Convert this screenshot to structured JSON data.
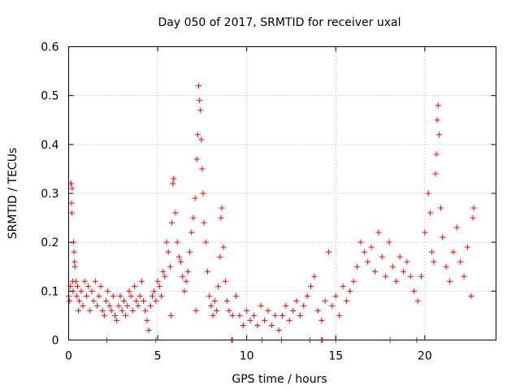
{
  "chart_data": {
    "type": "scatter",
    "title": "Day 050 of 2017, SRMTID for receiver uxal",
    "xlabel": "GPS time / hours",
    "ylabel": "SRMTID / TECUs",
    "xlim": [
      0,
      24
    ],
    "ylim": [
      0,
      0.6
    ],
    "xticks": [
      0,
      5,
      10,
      15,
      20
    ],
    "yticks": [
      0,
      0.1,
      0.2,
      0.3,
      0.4,
      0.5,
      0.6
    ],
    "xtick_labels": [
      "0",
      "5",
      "10",
      "15",
      "20"
    ],
    "ytick_labels": [
      "0",
      "0.1",
      "0.2",
      "0.3",
      "0.4",
      "0.5",
      "0.6"
    ],
    "grid": true,
    "marker": "+",
    "color": "#ff0000",
    "series": [
      {
        "name": "SRMTID",
        "points": [
          [
            0.0,
            0.09
          ],
          [
            0.05,
            0.08
          ],
          [
            0.1,
            0.11
          ],
          [
            0.12,
            0.32
          ],
          [
            0.14,
            0.32
          ],
          [
            0.16,
            0.28
          ],
          [
            0.18,
            0.26
          ],
          [
            0.2,
            0.31
          ],
          [
            0.22,
            0.12
          ],
          [
            0.25,
            0.1
          ],
          [
            0.28,
            0.2
          ],
          [
            0.3,
            0.18
          ],
          [
            0.33,
            0.16
          ],
          [
            0.35,
            0.15
          ],
          [
            0.4,
            0.12
          ],
          [
            0.45,
            0.09
          ],
          [
            0.5,
            0.11
          ],
          [
            0.55,
            0.06
          ],
          [
            0.6,
            0.08
          ],
          [
            0.7,
            0.1
          ],
          [
            0.8,
            0.07
          ],
          [
            0.9,
            0.12
          ],
          [
            1.0,
            0.09
          ],
          [
            1.1,
            0.11
          ],
          [
            1.2,
            0.06
          ],
          [
            1.3,
            0.1
          ],
          [
            1.4,
            0.08
          ],
          [
            1.5,
            0.12
          ],
          [
            1.6,
            0.07
          ],
          [
            1.7,
            0.09
          ],
          [
            1.8,
            0.11
          ],
          [
            1.9,
            0.06
          ],
          [
            2.0,
            0.05
          ],
          [
            2.1,
            0.08
          ],
          [
            2.2,
            0.1
          ],
          [
            2.3,
            0.07
          ],
          [
            2.4,
            0.06
          ],
          [
            2.5,
            0.09
          ],
          [
            2.6,
            0.05
          ],
          [
            2.7,
            0.04
          ],
          [
            2.8,
            0.07
          ],
          [
            2.9,
            0.09
          ],
          [
            3.0,
            0.06
          ],
          [
            3.1,
            0.08
          ],
          [
            3.2,
            0.05
          ],
          [
            3.3,
            0.07
          ],
          [
            3.4,
            0.1
          ],
          [
            3.5,
            0.09
          ],
          [
            3.6,
            0.06
          ],
          [
            3.7,
            0.11
          ],
          [
            3.8,
            0.08
          ],
          [
            3.9,
            0.07
          ],
          [
            4.0,
            0.09
          ],
          [
            4.1,
            0.12
          ],
          [
            4.2,
            0.08
          ],
          [
            4.3,
            0.06
          ],
          [
            4.4,
            0.04
          ],
          [
            4.5,
            0.02
          ],
          [
            4.6,
            0.07
          ],
          [
            4.7,
            0.09
          ],
          [
            4.8,
            0.1
          ],
          [
            4.9,
            0.08
          ],
          [
            5.0,
            0.12
          ],
          [
            5.1,
            0.11
          ],
          [
            5.2,
            0.09
          ],
          [
            5.3,
            0.14
          ],
          [
            5.4,
            0.13
          ],
          [
            5.5,
            0.2
          ],
          [
            5.6,
            0.18
          ],
          [
            5.7,
            0.15
          ],
          [
            5.75,
            0.05
          ],
          [
            5.8,
            0.24
          ],
          [
            5.85,
            0.32
          ],
          [
            5.9,
            0.33
          ],
          [
            6.0,
            0.26
          ],
          [
            6.1,
            0.2
          ],
          [
            6.2,
            0.17
          ],
          [
            6.3,
            0.16
          ],
          [
            6.4,
            0.13
          ],
          [
            6.5,
            0.1
          ],
          [
            6.6,
            0.12
          ],
          [
            6.7,
            0.14
          ],
          [
            6.8,
            0.18
          ],
          [
            6.9,
            0.22
          ],
          [
            7.0,
            0.25
          ],
          [
            7.1,
            0.29
          ],
          [
            7.15,
            0.06
          ],
          [
            7.2,
            0.37
          ],
          [
            7.25,
            0.42
          ],
          [
            7.3,
            0.52
          ],
          [
            7.35,
            0.49
          ],
          [
            7.4,
            0.47
          ],
          [
            7.45,
            0.41
          ],
          [
            7.5,
            0.35
          ],
          [
            7.55,
            0.3
          ],
          [
            7.6,
            0.24
          ],
          [
            7.7,
            0.2
          ],
          [
            7.8,
            0.14
          ],
          [
            7.9,
            0.09
          ],
          [
            8.0,
            0.07
          ],
          [
            8.1,
            0.05
          ],
          [
            8.2,
            0.08
          ],
          [
            8.3,
            0.06
          ],
          [
            8.4,
            0.11
          ],
          [
            8.5,
            0.17
          ],
          [
            8.55,
            0.25
          ],
          [
            8.6,
            0.27
          ],
          [
            8.7,
            0.19
          ],
          [
            8.8,
            0.12
          ],
          [
            8.9,
            0.08
          ],
          [
            9.0,
            0.06
          ],
          [
            9.2,
            0.05
          ],
          [
            9.4,
            0.09
          ],
          [
            9.6,
            0.05
          ],
          [
            9.8,
            0.03
          ],
          [
            10.0,
            0.06
          ],
          [
            10.2,
            0.04
          ],
          [
            10.4,
            0.05
          ],
          [
            10.6,
            0.03
          ],
          [
            10.8,
            0.07
          ],
          [
            11.0,
            0.04
          ],
          [
            11.2,
            0.06
          ],
          [
            11.4,
            0.03
          ],
          [
            11.6,
            0.05
          ],
          [
            11.8,
            0.02
          ],
          [
            12.0,
            0.05
          ],
          [
            12.2,
            0.07
          ],
          [
            12.4,
            0.04
          ],
          [
            12.6,
            0.06
          ],
          [
            12.8,
            0.08
          ],
          [
            13.0,
            0.05
          ],
          [
            13.2,
            0.07
          ],
          [
            13.4,
            0.09
          ],
          [
            13.6,
            0.11
          ],
          [
            13.8,
            0.13
          ],
          [
            14.0,
            0.06
          ],
          [
            14.2,
            0.04
          ],
          [
            14.4,
            0.08
          ],
          [
            14.6,
            0.18
          ],
          [
            14.8,
            0.07
          ],
          [
            15.0,
            0.09
          ],
          [
            15.2,
            0.05
          ],
          [
            15.4,
            0.11
          ],
          [
            15.6,
            0.08
          ],
          [
            15.8,
            0.1
          ],
          [
            16.0,
            0.12
          ],
          [
            16.2,
            0.15
          ],
          [
            16.4,
            0.2
          ],
          [
            16.6,
            0.18
          ],
          [
            16.8,
            0.16
          ],
          [
            17.0,
            0.19
          ],
          [
            17.2,
            0.14
          ],
          [
            17.4,
            0.22
          ],
          [
            17.6,
            0.17
          ],
          [
            17.8,
            0.13
          ],
          [
            18.0,
            0.2
          ],
          [
            18.2,
            0.15
          ],
          [
            18.4,
            0.12
          ],
          [
            18.6,
            0.17
          ],
          [
            18.8,
            0.14
          ],
          [
            19.0,
            0.16
          ],
          [
            19.2,
            0.13
          ],
          [
            19.4,
            0.1
          ],
          [
            19.6,
            0.08
          ],
          [
            19.8,
            0.13
          ],
          [
            20.0,
            0.22
          ],
          [
            20.2,
            0.3
          ],
          [
            20.3,
            0.26
          ],
          [
            20.4,
            0.18
          ],
          [
            20.5,
            0.16
          ],
          [
            20.6,
            0.34
          ],
          [
            20.65,
            0.38
          ],
          [
            20.7,
            0.45
          ],
          [
            20.75,
            0.48
          ],
          [
            20.8,
            0.42
          ],
          [
            20.9,
            0.27
          ],
          [
            21.0,
            0.21
          ],
          [
            21.2,
            0.15
          ],
          [
            21.4,
            0.12
          ],
          [
            21.6,
            0.18
          ],
          [
            21.8,
            0.23
          ],
          [
            22.0,
            0.16
          ],
          [
            22.2,
            0.13
          ],
          [
            22.4,
            0.19
          ],
          [
            22.6,
            0.09
          ],
          [
            22.7,
            0.25
          ],
          [
            22.75,
            0.27
          ]
        ],
        "zero_points": [
          [
            2.15,
            0
          ],
          [
            4.9,
            0
          ],
          [
            9.15,
            0
          ],
          [
            9.2,
            0
          ],
          [
            10.85,
            0
          ],
          [
            11.95,
            0
          ],
          [
            13.55,
            0
          ],
          [
            14.2,
            0
          ],
          [
            14.25,
            0
          ],
          [
            15.0,
            0
          ],
          [
            18.05,
            0
          ],
          [
            19.55,
            0
          ]
        ]
      }
    ]
  }
}
